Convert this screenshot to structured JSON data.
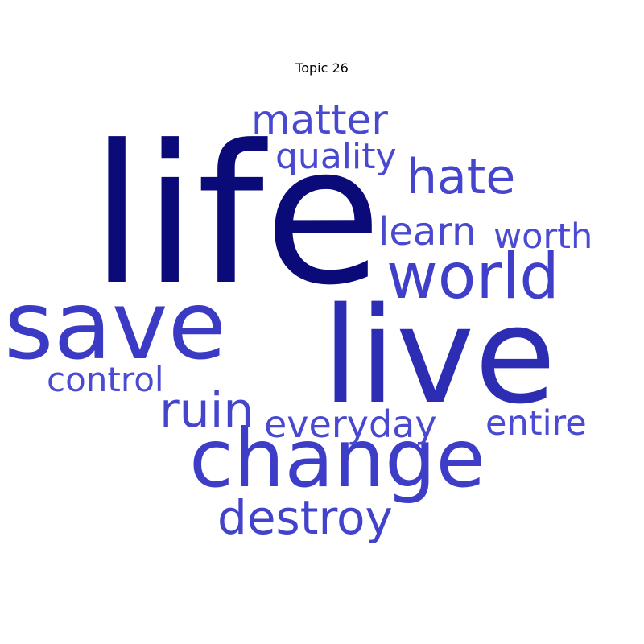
{
  "title": "Topic 26",
  "words": {
    "life": {
      "text": "life",
      "color": "#0a0a78"
    },
    "live": {
      "text": "live",
      "color": "#2d2db4"
    },
    "save": {
      "text": "save",
      "color": "#3a3ac4"
    },
    "change": {
      "text": "change",
      "color": "#3d3dc8"
    },
    "world": {
      "text": "world",
      "color": "#3f3fca"
    },
    "hate": {
      "text": "hate",
      "color": "#4444cc"
    },
    "ruin": {
      "text": "ruin",
      "color": "#4444cc"
    },
    "destroy": {
      "text": "destroy",
      "color": "#4242cc"
    },
    "matter": {
      "text": "matter",
      "color": "#4848d0"
    },
    "learn": {
      "text": "learn",
      "color": "#4848d0"
    },
    "everyday": {
      "text": "everyday",
      "color": "#4848d0"
    },
    "quality": {
      "text": "quality",
      "color": "#4848d0"
    },
    "worth": {
      "text": "worth",
      "color": "#4a4ad2"
    },
    "entire": {
      "text": "entire",
      "color": "#4a4ad2"
    },
    "control": {
      "text": "control",
      "color": "#4a4ad2"
    }
  }
}
